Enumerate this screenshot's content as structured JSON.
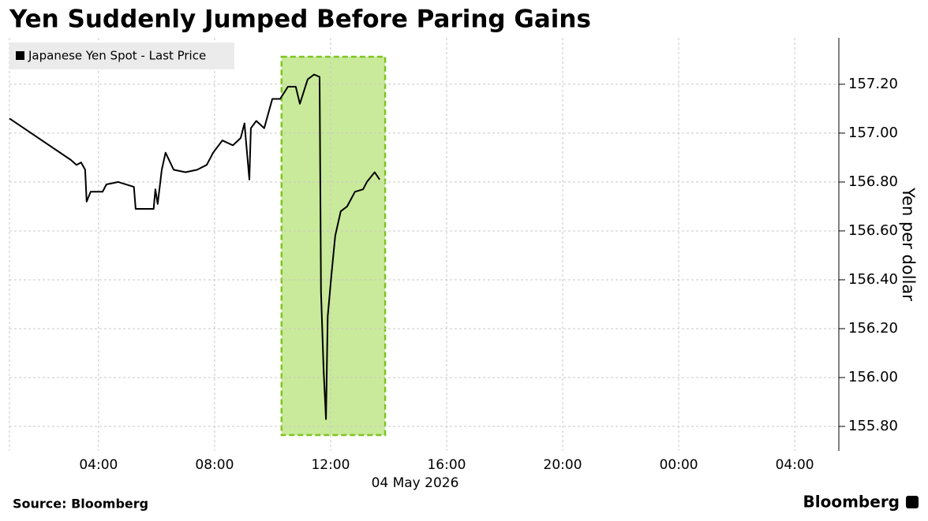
{
  "chart_data": {
    "type": "line",
    "title": "Yen Suddenly Jumped Before Paring Gains",
    "y_axis_label": "Yen per dollar",
    "x_axis_date": "04 May 2026",
    "source": "Source: Bloomberg",
    "brand": "Bloomberg",
    "x": [
      0.93,
      3.05,
      3.24,
      3.4,
      3.54,
      3.59,
      3.73,
      4.14,
      4.27,
      4.68,
      5.22,
      5.28,
      5.9,
      5.96,
      6.04,
      6.18,
      6.31,
      6.59,
      7.0,
      7.4,
      7.73,
      7.95,
      8.27,
      8.63,
      8.9,
      9.03,
      9.2,
      9.25,
      9.44,
      9.71,
      9.99,
      10.26,
      10.53,
      10.8,
      10.94,
      11.21,
      11.43,
      11.62,
      11.67,
      11.76,
      11.84,
      11.9,
      12.03,
      12.16,
      12.35,
      12.57,
      12.84,
      13.12,
      13.25,
      13.52,
      13.69
    ],
    "series": [
      {
        "name": "Japanese Yen Spot - Last Price",
        "color": "#000000",
        "values": [
          157.06,
          156.89,
          156.87,
          156.88,
          156.85,
          156.72,
          156.76,
          156.76,
          156.79,
          156.8,
          156.78,
          156.69,
          156.69,
          156.77,
          156.71,
          156.85,
          156.92,
          156.85,
          156.84,
          156.85,
          156.87,
          156.92,
          156.97,
          156.95,
          156.98,
          157.04,
          156.81,
          157.02,
          157.05,
          157.02,
          157.14,
          157.14,
          157.19,
          157.19,
          157.12,
          157.22,
          157.24,
          157.23,
          156.35,
          156.03,
          155.83,
          156.25,
          156.42,
          156.58,
          156.68,
          156.7,
          156.76,
          156.77,
          156.8,
          156.84,
          156.81
        ]
      }
    ],
    "xlim": [
      0.93,
      29.52
    ],
    "xticks": [
      {
        "value": 4,
        "label": "04:00"
      },
      {
        "value": 8,
        "label": "08:00"
      },
      {
        "value": 12,
        "label": "12:00"
      },
      {
        "value": 16,
        "label": "16:00"
      },
      {
        "value": 20,
        "label": "20:00"
      },
      {
        "value": 24,
        "label": "00:00"
      },
      {
        "value": 28,
        "label": "04:00"
      }
    ],
    "ylim": [
      155.7,
      157.39
    ],
    "yticks": [
      {
        "value": 155.8,
        "label": "155.80"
      },
      {
        "value": 156,
        "label": "156.00"
      },
      {
        "value": 156.2,
        "label": "156.20"
      },
      {
        "value": 156.4,
        "label": "156.40"
      },
      {
        "value": 156.6,
        "label": "156.60"
      },
      {
        "value": 156.8,
        "label": "156.80"
      },
      {
        "value": 157,
        "label": "157.00"
      },
      {
        "value": 157.2,
        "label": "157.20"
      }
    ],
    "highlight": {
      "x0": 10.31,
      "x1": 13.88,
      "color": "#c9ea9a",
      "border": "#7dc41f"
    },
    "grid": true,
    "legend": "top-left"
  }
}
